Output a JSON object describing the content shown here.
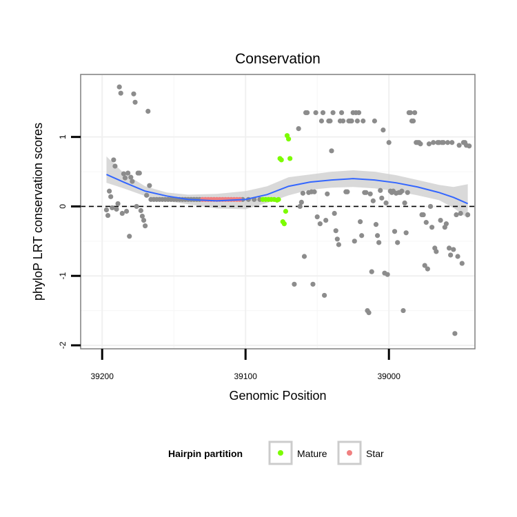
{
  "chart_data": {
    "type": "scatter",
    "title": "Conservation",
    "xlabel": "Genomic Position",
    "ylabel": "phyloP LRT conservation scores",
    "xlim": [
      39215,
      38940
    ],
    "x_reversed": true,
    "ylim": [
      -2.05,
      1.9
    ],
    "x_ticks": [
      39200,
      39100,
      39000
    ],
    "x_tick_labels": [
      "39200",
      "39100",
      "39000"
    ],
    "y_ticks": [
      1,
      0,
      -1,
      -2
    ],
    "y_tick_labels": [
      "1",
      "0",
      "-1",
      "-2"
    ],
    "reference_line": {
      "y": 0,
      "style": "dashed"
    },
    "legend": {
      "title": "Hairpin partition",
      "position": "bottom",
      "entries": [
        {
          "label": "Mature",
          "color": "#7CFC00"
        },
        {
          "label": "Star",
          "color": "#F08080"
        }
      ]
    },
    "colors": {
      "other": "#8C8C8C",
      "Mature": "#7CFC00",
      "Star": "#F08080",
      "smooth": "#3366FF",
      "ribbon": "#CCCCCC"
    },
    "series": [
      {
        "name": "Other",
        "points": [
          [
            39197,
            -0.05
          ],
          [
            39196,
            -0.13
          ],
          [
            39195,
            0.22
          ],
          [
            39194,
            0.14
          ],
          [
            39193,
            -0.02
          ],
          [
            39192,
            0.67
          ],
          [
            39191,
            0.58
          ],
          [
            39190,
            -0.04
          ],
          [
            39189,
            0.04
          ],
          [
            39188,
            1.72
          ],
          [
            39187,
            1.63
          ],
          [
            39186,
            -0.1
          ],
          [
            39185,
            0.47
          ],
          [
            39184,
            0.41
          ],
          [
            39183,
            -0.07
          ],
          [
            39182,
            0.48
          ],
          [
            39181,
            -0.43
          ],
          [
            39180,
            0.42
          ],
          [
            39179,
            0.36
          ],
          [
            39178,
            1.62
          ],
          [
            39177,
            1.5
          ],
          [
            39176,
            0.0
          ],
          [
            39175,
            0.48
          ],
          [
            39174,
            0.48
          ],
          [
            39173,
            -0.06
          ],
          [
            39172,
            -0.14
          ],
          [
            39171,
            -0.2
          ],
          [
            39170,
            -0.28
          ],
          [
            39169,
            0.16
          ],
          [
            39168,
            1.37
          ],
          [
            39167,
            0.3
          ],
          [
            39166,
            0.1
          ],
          [
            39164,
            0.1
          ],
          [
            39162,
            0.1
          ],
          [
            39160,
            0.1
          ],
          [
            39158,
            0.1
          ],
          [
            39156,
            0.1
          ],
          [
            39154,
            0.1
          ],
          [
            39152,
            0.1
          ],
          [
            39150,
            0.1
          ],
          [
            39148,
            0.1
          ],
          [
            39146,
            0.1
          ],
          [
            39144,
            0.1
          ],
          [
            39142,
            0.1
          ],
          [
            39140,
            0.1
          ],
          [
            39138,
            0.1
          ],
          [
            39136,
            0.1
          ],
          [
            39134,
            0.1
          ],
          [
            39132,
            0.1
          ],
          [
            39102,
            0.1
          ],
          [
            39098,
            0.1
          ],
          [
            39094,
            0.1
          ],
          [
            39090,
            0.1
          ],
          [
            39066,
            -1.12
          ],
          [
            39063,
            1.12
          ],
          [
            39062,
            0.0
          ],
          [
            39061,
            0.06
          ],
          [
            39060,
            0.19
          ],
          [
            39059,
            -0.72
          ],
          [
            39058,
            1.35
          ],
          [
            39057,
            1.35
          ],
          [
            39056,
            0.2
          ],
          [
            39054,
            0.21
          ],
          [
            39053,
            -1.12
          ],
          [
            39052,
            0.21
          ],
          [
            39051,
            1.35
          ],
          [
            39050,
            -0.15
          ],
          [
            39048,
            -0.25
          ],
          [
            39047,
            1.23
          ],
          [
            39046,
            1.35
          ],
          [
            39045,
            -1.28
          ],
          [
            39044,
            -0.2
          ],
          [
            39043,
            0.18
          ],
          [
            39042,
            1.23
          ],
          [
            39041,
            1.23
          ],
          [
            39040,
            0.8
          ],
          [
            39039,
            1.35
          ],
          [
            39038,
            -0.1
          ],
          [
            39037,
            -0.35
          ],
          [
            39036,
            -0.47
          ],
          [
            39035,
            -0.55
          ],
          [
            39034,
            1.23
          ],
          [
            39033,
            1.35
          ],
          [
            39032,
            1.23
          ],
          [
            39030,
            0.21
          ],
          [
            39029,
            0.21
          ],
          [
            39028,
            1.23
          ],
          [
            39027,
            1.23
          ],
          [
            39026,
            1.23
          ],
          [
            39025,
            1.35
          ],
          [
            39024,
            -0.5
          ],
          [
            39023,
            1.35
          ],
          [
            39022,
            1.23
          ],
          [
            39021,
            1.35
          ],
          [
            39020,
            -0.22
          ],
          [
            39019,
            -0.42
          ],
          [
            39018,
            1.23
          ],
          [
            39017,
            0.2
          ],
          [
            39016,
            0.2
          ],
          [
            39015,
            -1.5
          ],
          [
            39014,
            -1.53
          ],
          [
            39013,
            0.18
          ],
          [
            39012,
            -0.94
          ],
          [
            39011,
            0.08
          ],
          [
            39010,
            1.23
          ],
          [
            39009,
            -0.26
          ],
          [
            39008,
            -0.42
          ],
          [
            39007,
            -0.52
          ],
          [
            39006,
            0.23
          ],
          [
            39005,
            0.12
          ],
          [
            39004,
            1.1
          ],
          [
            39003,
            -0.96
          ],
          [
            39002,
            0.05
          ],
          [
            39001,
            -0.98
          ],
          [
            39000,
            0.92
          ],
          [
            38999,
            0.22
          ],
          [
            38998,
            0.2
          ],
          [
            38997,
            0.22
          ],
          [
            38996,
            -0.36
          ],
          [
            38995,
            0.19
          ],
          [
            38994,
            -0.52
          ],
          [
            38993,
            0.2
          ],
          [
            38992,
            0.2
          ],
          [
            38991,
            0.22
          ],
          [
            38990,
            -1.5
          ],
          [
            38989,
            0.05
          ],
          [
            38988,
            -0.38
          ],
          [
            38987,
            0.2
          ],
          [
            38986,
            1.35
          ],
          [
            38985,
            1.35
          ],
          [
            38984,
            1.23
          ],
          [
            38983,
            1.23
          ],
          [
            38982,
            1.35
          ],
          [
            38981,
            0.92
          ],
          [
            38980,
            0.92
          ],
          [
            38979,
            0.92
          ],
          [
            38978,
            0.9
          ],
          [
            38977,
            -0.12
          ],
          [
            38976,
            -0.12
          ],
          [
            38975,
            -0.85
          ],
          [
            38974,
            -0.23
          ],
          [
            38973,
            -0.9
          ],
          [
            38972,
            0.9
          ],
          [
            38971,
            0.0
          ],
          [
            38970,
            -0.3
          ],
          [
            38969,
            0.92
          ],
          [
            38968,
            -0.6
          ],
          [
            38967,
            -0.65
          ],
          [
            38966,
            0.92
          ],
          [
            38965,
            0.92
          ],
          [
            38964,
            -0.2
          ],
          [
            38963,
            0.92
          ],
          [
            38962,
            0.92
          ],
          [
            38961,
            -0.3
          ],
          [
            38960,
            -0.25
          ],
          [
            38959,
            0.92
          ],
          [
            38958,
            -0.6
          ],
          [
            38957,
            -0.7
          ],
          [
            38956,
            0.92
          ],
          [
            38955,
            -0.62
          ],
          [
            38954,
            -1.83
          ],
          [
            38953,
            -0.12
          ],
          [
            38952,
            -0.72
          ],
          [
            38951,
            0.88
          ],
          [
            38950,
            -0.1
          ],
          [
            38949,
            -0.82
          ],
          [
            38948,
            0.92
          ],
          [
            38947,
            0.92
          ],
          [
            38946,
            0.88
          ],
          [
            38945,
            -0.12
          ],
          [
            38944,
            0.87
          ]
        ]
      },
      {
        "name": "Mature",
        "points": [
          [
            39088,
            0.1
          ],
          [
            39086,
            0.1
          ],
          [
            39084,
            0.1
          ],
          [
            39082,
            0.1
          ],
          [
            39080,
            0.1
          ],
          [
            39078,
            0.09
          ],
          [
            39077,
            0.1
          ],
          [
            39076,
            0.69
          ],
          [
            39075,
            0.67
          ],
          [
            39074,
            -0.22
          ],
          [
            39073,
            -0.25
          ],
          [
            39072,
            -0.07
          ],
          [
            39071,
            1.02
          ],
          [
            39070,
            0.97
          ],
          [
            39069,
            0.69
          ]
        ]
      },
      {
        "name": "Star",
        "points": [
          [
            39130,
            0.1
          ],
          [
            39128,
            0.1
          ],
          [
            39126,
            0.1
          ],
          [
            39124,
            0.1
          ],
          [
            39122,
            0.1
          ],
          [
            39120,
            0.1
          ],
          [
            39118,
            0.1
          ],
          [
            39116,
            0.1
          ],
          [
            39114,
            0.1
          ],
          [
            39112,
            0.1
          ],
          [
            39110,
            0.1
          ],
          [
            39108,
            0.1
          ],
          [
            39106,
            0.1
          ],
          [
            39104,
            0.1
          ]
        ]
      }
    ],
    "smooth": [
      {
        "x": 39197,
        "y": 0.46,
        "ymin": 0.34,
        "ymax": 0.72
      },
      {
        "x": 39185,
        "y": 0.35,
        "ymin": 0.26,
        "ymax": 0.48
      },
      {
        "x": 39170,
        "y": 0.22,
        "ymin": 0.15,
        "ymax": 0.29
      },
      {
        "x": 39155,
        "y": 0.15,
        "ymin": 0.08,
        "ymax": 0.2
      },
      {
        "x": 39140,
        "y": 0.1,
        "ymin": 0.03,
        "ymax": 0.17
      },
      {
        "x": 39120,
        "y": 0.08,
        "ymin": -0.03,
        "ymax": 0.18
      },
      {
        "x": 39100,
        "y": 0.1,
        "ymin": -0.04,
        "ymax": 0.22
      },
      {
        "x": 39085,
        "y": 0.17,
        "ymin": 0.05,
        "ymax": 0.29
      },
      {
        "x": 39070,
        "y": 0.29,
        "ymin": 0.16,
        "ymax": 0.42
      },
      {
        "x": 39055,
        "y": 0.35,
        "ymin": 0.24,
        "ymax": 0.46
      },
      {
        "x": 39040,
        "y": 0.38,
        "ymin": 0.27,
        "ymax": 0.5
      },
      {
        "x": 39025,
        "y": 0.4,
        "ymin": 0.28,
        "ymax": 0.52
      },
      {
        "x": 39010,
        "y": 0.38,
        "ymin": 0.26,
        "ymax": 0.5
      },
      {
        "x": 38995,
        "y": 0.34,
        "ymin": 0.22,
        "ymax": 0.45
      },
      {
        "x": 38980,
        "y": 0.28,
        "ymin": 0.16,
        "ymax": 0.38
      },
      {
        "x": 38965,
        "y": 0.2,
        "ymin": 0.09,
        "ymax": 0.31
      },
      {
        "x": 38955,
        "y": 0.13,
        "ymin": -0.02,
        "ymax": 0.28
      },
      {
        "x": 38945,
        "y": 0.04,
        "ymin": -0.17,
        "ymax": 0.32
      }
    ]
  }
}
